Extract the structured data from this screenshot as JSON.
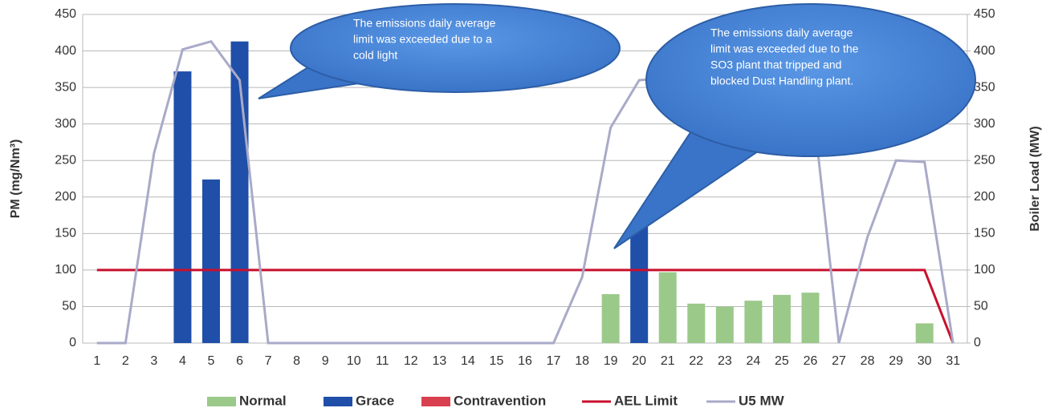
{
  "chart_data": {
    "type": "bar",
    "categories": [
      "1",
      "2",
      "3",
      "4",
      "5",
      "6",
      "7",
      "8",
      "9",
      "10",
      "11",
      "12",
      "13",
      "14",
      "15",
      "16",
      "17",
      "18",
      "19",
      "20",
      "21",
      "22",
      "23",
      "24",
      "25",
      "26",
      "27",
      "28",
      "29",
      "30",
      "31"
    ],
    "y_label": "PM (mg/Nm³)",
    "y2_label": "Boiler Load (MW)",
    "ylim": [
      0,
      450
    ],
    "yticks": [
      0,
      50,
      100,
      150,
      200,
      250,
      300,
      350,
      400,
      450
    ],
    "y2lim": [
      0,
      450
    ],
    "y2ticks": [
      0,
      50,
      100,
      150,
      200,
      250,
      300,
      350,
      400,
      450
    ],
    "grid": true,
    "legend": "bottom",
    "series": [
      {
        "name": "Normal",
        "type": "bar",
        "color": "#9bc98a",
        "values": [
          null,
          null,
          null,
          null,
          null,
          null,
          null,
          null,
          null,
          null,
          null,
          null,
          null,
          null,
          null,
          null,
          null,
          null,
          67,
          null,
          97,
          54,
          50,
          58,
          66,
          69,
          null,
          null,
          null,
          27,
          null
        ]
      },
      {
        "name": "Grace",
        "type": "bar",
        "color": "#1f4fa8",
        "values": [
          null,
          null,
          null,
          372,
          224,
          413,
          null,
          null,
          null,
          null,
          null,
          null,
          null,
          null,
          null,
          null,
          null,
          null,
          null,
          165,
          null,
          null,
          null,
          null,
          null,
          null,
          null,
          null,
          null,
          null,
          null
        ]
      },
      {
        "name": "Contravention",
        "type": "bar",
        "color": "#d9404f",
        "values": [
          null,
          null,
          null,
          null,
          null,
          null,
          null,
          null,
          null,
          null,
          null,
          null,
          null,
          null,
          null,
          null,
          null,
          null,
          null,
          null,
          null,
          null,
          null,
          null,
          null,
          null,
          null,
          null,
          null,
          null,
          null
        ]
      },
      {
        "name": "AEL Limit",
        "type": "line",
        "color": "#c8102e",
        "values": [
          100,
          100,
          100,
          100,
          100,
          100,
          100,
          100,
          100,
          100,
          100,
          100,
          100,
          100,
          100,
          100,
          100,
          100,
          100,
          100,
          100,
          100,
          100,
          100,
          100,
          100,
          100,
          100,
          100,
          100,
          0
        ]
      },
      {
        "name": "U5 MW",
        "type": "line",
        "axis": "y2",
        "color": "#a9aac8",
        "values": [
          0,
          0,
          260,
          402,
          413,
          360,
          0,
          0,
          0,
          0,
          0,
          0,
          0,
          0,
          0,
          0,
          0,
          90,
          295,
          360,
          363,
          362,
          362,
          362,
          360,
          355,
          0,
          145,
          250,
          248,
          0
        ]
      }
    ],
    "annotations": [
      {
        "lines": [
          "The emissions daily average",
          "limit was exceeded due to a",
          "cold light"
        ]
      },
      {
        "lines": [
          "The emissions daily average",
          "limit was exceeded due to the",
          "SO3 plant that tripped and",
          "blocked Dust Handling plant."
        ]
      }
    ]
  }
}
